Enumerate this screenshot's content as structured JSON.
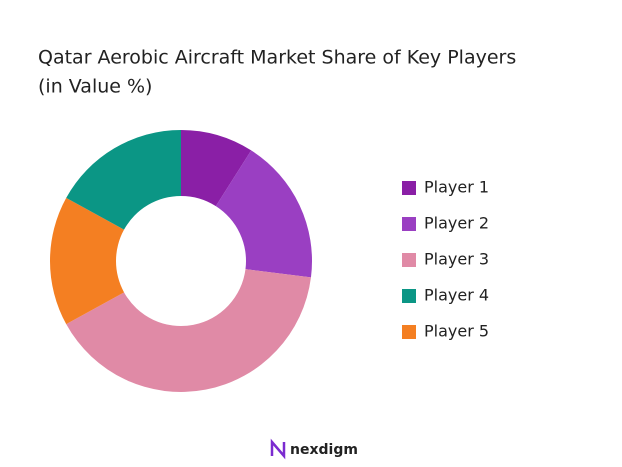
{
  "chart_data": {
    "type": "donut",
    "title": "Qatar Aerobic Aircraft Market Share of Key Players",
    "subtitle": "(in Value %)",
    "series": [
      {
        "name": "Player 1",
        "color": "#8a1fa6",
        "values": [
          9
        ]
      },
      {
        "name": "Player 2",
        "color": "#9a3fc2",
        "values": [
          18
        ]
      },
      {
        "name": "Player 3",
        "color": "#e08aa6",
        "values": [
          40
        ]
      },
      {
        "name": "Player 4",
        "color": "#0b9685",
        "values": [
          17
        ]
      },
      {
        "name": "Player 5",
        "color": "#f47f22",
        "values": [
          16
        ]
      }
    ],
    "legend": "right"
  },
  "brand": "nexdigm"
}
